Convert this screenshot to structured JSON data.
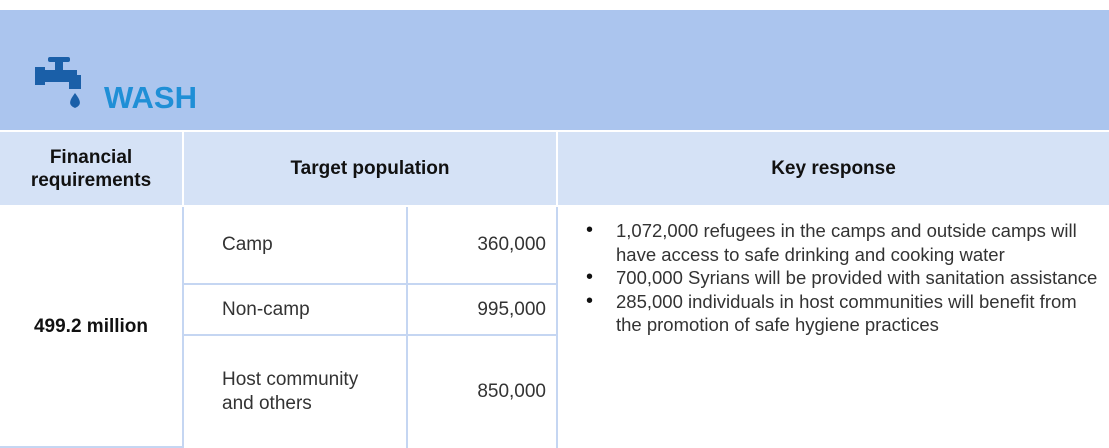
{
  "header": {
    "title": "WASH"
  },
  "table": {
    "headers": [
      "Financial requirements",
      "Target population",
      "Key response"
    ],
    "financial_requirement": "499.2 million",
    "population": [
      [
        "Camp",
        "360,000"
      ],
      [
        "Non-camp",
        "995,000"
      ],
      [
        "Host community and others",
        "850,000"
      ]
    ],
    "key_response": [
      "1,072,000 refugees in the camps and outside camps will have access to safe drinking and cooking water",
      "700,000 Syrians will be provided with sanitation assistance",
      "285,000 individuals in host communities will benefit from the promotion of safe hygiene practices"
    ]
  }
}
